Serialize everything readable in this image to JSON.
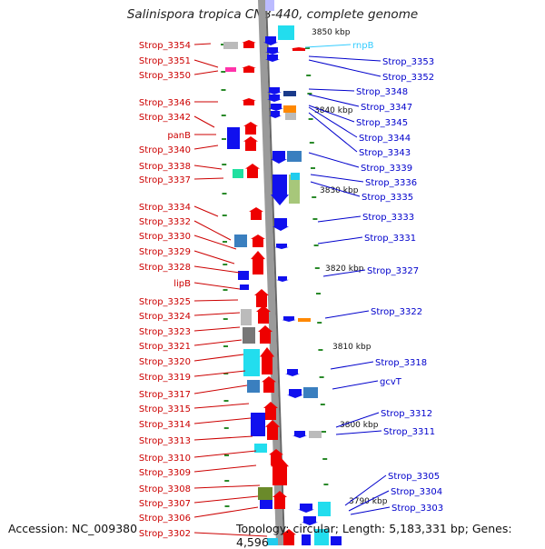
{
  "title": "Salinispora tropica CNB-440, complete genome",
  "footer": {
    "accession": "Accession: NC_009380",
    "stats": "Topology: circular; Length: 5,183,331 bp; Genes: 4,596"
  },
  "colors": {
    "left_label": "#cc0000",
    "right_label": "#0000cc",
    "rna_label": "#33ccff",
    "forward_gene": "#ee0000",
    "reverse_gene": "#1010ee",
    "axis": "#999999",
    "tick": "#2a8a2a"
  },
  "ruler": [
    "3850 kbp",
    "3840 kbp",
    "3830 kbp",
    "3820 kbp",
    "3810 kbp",
    "3800 kbp",
    "3790 kbp"
  ],
  "left_labels": [
    "Strop_3354",
    "Strop_3351",
    "Strop_3350",
    "Strop_3346",
    "Strop_3342",
    "panB",
    "Strop_3340",
    "Strop_3338",
    "Strop_3337",
    "Strop_3334",
    "Strop_3332",
    "Strop_3330",
    "Strop_3329",
    "Strop_3328",
    "lipB",
    "Strop_3325",
    "Strop_3324",
    "Strop_3323",
    "Strop_3321",
    "Strop_3320",
    "Strop_3319",
    "Strop_3317",
    "Strop_3315",
    "Strop_3314",
    "Strop_3313",
    "Strop_3310",
    "Strop_3309",
    "Strop_3308",
    "Strop_3307",
    "Strop_3306",
    "Strop_3302"
  ],
  "right_labels": [
    "rnpB",
    "Strop_3353",
    "Strop_3352",
    "Strop_3348",
    "Strop_3347",
    "Strop_3345",
    "Strop_3344",
    "Strop_3343",
    "Strop_3339",
    "Strop_3336",
    "Strop_3335",
    "Strop_3333",
    "Strop_3331",
    "Strop_3327",
    "Strop_3322",
    "Strop_3318",
    "gcvT",
    "Strop_3312",
    "Strop_3311",
    "Strop_3305",
    "Strop_3304",
    "Strop_3303"
  ]
}
